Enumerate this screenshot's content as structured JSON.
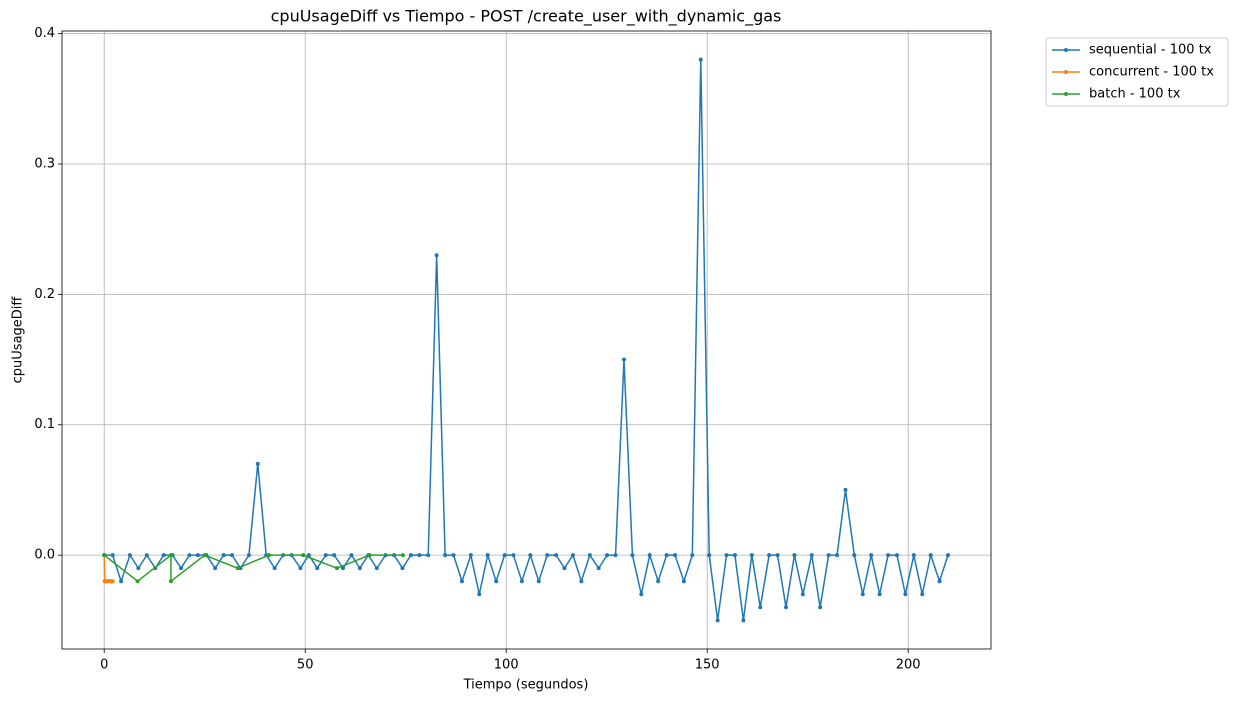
{
  "chart_data": {
    "type": "line",
    "title": "cpuUsageDiff vs Tiempo - POST /create_user_with_dynamic_gas",
    "x_label": "Tiempo (segundos)",
    "y_label": "cpuUsageDiff",
    "xlim": [
      -10.5,
      220.6
    ],
    "ylim": [
      -0.072,
      0.402
    ],
    "xticks": [
      0,
      50,
      100,
      150,
      200
    ],
    "yticks": [
      {
        "value": 0,
        "label": "0.0"
      },
      0.1,
      0.2,
      0.3,
      0.4
    ],
    "grid": true,
    "legend_position": "outside-upper-right",
    "series": [
      {
        "name": "sequential - 100 tx",
        "color": "#1f77b4",
        "x": [
          0,
          2.1,
          4.2,
          6.4,
          8.5,
          10.6,
          12.7,
          14.8,
          17.0,
          19.1,
          21.2,
          23.3,
          25.4,
          27.6,
          29.7,
          31.8,
          33.9,
          36.0,
          38.2,
          40.3,
          42.4,
          44.5,
          46.6,
          48.8,
          50.9,
          53.0,
          55.1,
          57.2,
          59.4,
          61.5,
          63.6,
          65.7,
          67.8,
          70.0,
          72.1,
          74.2,
          76.3,
          78.4,
          80.6,
          82.7,
          84.8,
          86.9,
          89.0,
          91.2,
          93.3,
          95.4,
          97.5,
          99.6,
          101.8,
          103.9,
          106.0,
          108.1,
          110.2,
          112.4,
          114.5,
          116.6,
          118.7,
          120.8,
          123.0,
          125.1,
          127.2,
          129.3,
          131.4,
          133.6,
          135.7,
          137.8,
          139.9,
          142.0,
          144.2,
          146.3,
          148.4,
          150.5,
          152.6,
          154.8,
          156.9,
          159.0,
          161.1,
          163.2,
          165.4,
          167.5,
          169.6,
          171.7,
          173.8,
          176.0,
          178.1,
          180.2,
          182.3,
          184.4,
          186.6,
          188.7,
          190.8,
          192.9,
          195.0,
          197.2,
          199.3,
          201.4,
          203.5,
          205.6,
          207.8,
          209.9
        ],
        "values": [
          0,
          0,
          -0.02,
          0,
          -0.01,
          0,
          -0.01,
          0,
          0,
          -0.01,
          0,
          0,
          0,
          -0.01,
          0,
          0,
          -0.01,
          0,
          0.07,
          0,
          -0.01,
          0,
          0,
          -0.01,
          0,
          -0.01,
          0,
          0,
          -0.01,
          0,
          -0.01,
          0,
          -0.01,
          0,
          0,
          -0.01,
          0,
          0,
          0,
          0.23,
          0,
          0,
          -0.02,
          0,
          -0.03,
          0,
          -0.02,
          0,
          0,
          -0.02,
          0,
          -0.02,
          0,
          0,
          -0.01,
          0,
          -0.02,
          0,
          -0.01,
          0,
          0,
          0.15,
          0,
          -0.03,
          0,
          -0.02,
          0,
          0,
          -0.02,
          0,
          0.38,
          0,
          -0.05,
          0,
          0,
          -0.05,
          0,
          -0.04,
          0,
          0,
          -0.04,
          0,
          -0.03,
          0,
          -0.04,
          0,
          0,
          0.05,
          0,
          -0.03,
          0,
          -0.03,
          0,
          0,
          -0.03,
          0,
          -0.03,
          0,
          -0.02,
          0
        ]
      },
      {
        "name": "concurrent - 100 tx",
        "color": "#ff7f0e",
        "x": [
          0,
          0.1,
          0.3,
          0.5,
          0.7,
          0.9,
          1.1,
          1.3,
          1.5,
          1.7,
          1.9,
          2.1
        ],
        "values": [
          0,
          -0.02,
          -0.02,
          -0.02,
          -0.02,
          -0.02,
          -0.02,
          -0.02,
          -0.02,
          -0.02,
          -0.02,
          -0.02
        ]
      },
      {
        "name": "batch - 100 tx",
        "color": "#2ca02c",
        "x": [
          0,
          8.3,
          16.6,
          16.6,
          25.0,
          33.2,
          41.0,
          49.5,
          57.9,
          66.0,
          74.3
        ],
        "values": [
          0,
          -0.02,
          0,
          -0.02,
          0,
          -0.01,
          0,
          0,
          -0.01,
          0,
          0
        ]
      }
    ]
  }
}
